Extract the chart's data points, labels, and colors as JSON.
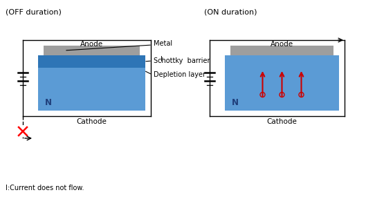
{
  "bg_color": "#ffffff",
  "off_title": "(OFF duration)",
  "on_title": "(ON duration)",
  "n_color": "#5b9bd5",
  "depletion_color": "#2e75b6",
  "metal_color": "#9e9e9e",
  "label_color": "#000000",
  "n_label": "N",
  "anode_label": "Anode",
  "cathode_label": "Cathode",
  "metal_label": "Metal",
  "schottky_label": "Schottky  barrier",
  "depletion_label": "Depletion layer",
  "current_label": "I:Current does not flow.",
  "i_label": "I",
  "arrow_color": "#cc0000",
  "circle_color": "#cc0000",
  "title_fontsize": 8,
  "label_fontsize": 7.5,
  "small_fontsize": 7
}
